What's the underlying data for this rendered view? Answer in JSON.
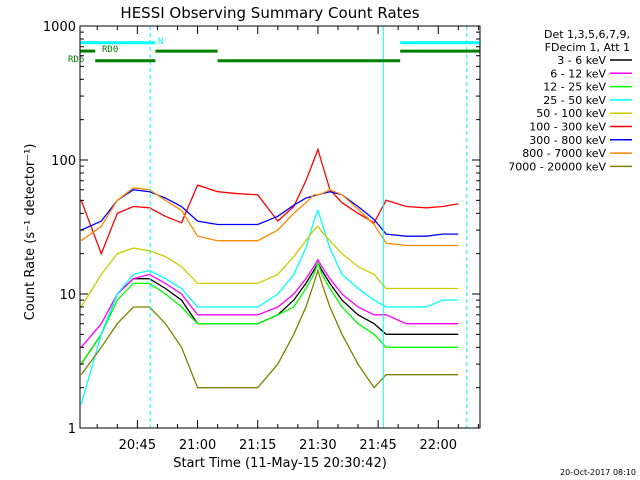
{
  "chart_data": {
    "type": "line",
    "title": "HESSI Observing Summary Count Rates",
    "xlabel": "Start Time (11-May-15 20:30:42)",
    "ylabel": "Count Rate (s⁻¹ detector⁻¹)",
    "y_scale": "log",
    "ylim": [
      1,
      1000
    ],
    "xlim_minutes_from_2030": [
      0.7,
      100.4
    ],
    "x_ticks": [
      "20:45",
      "21:00",
      "21:15",
      "21:30",
      "21:45",
      "22:00"
    ],
    "y_ticks": [
      "1",
      "10",
      "100",
      "1000"
    ],
    "grid": false,
    "legend_position": "top-right",
    "legend_header": [
      "Det 1,3,5,6,7,9,",
      "FDecim 1, Att 1"
    ],
    "timestamp": "20-Oct-2017 08:10",
    "x_times": [
      "20:31",
      "20:36",
      "20:40",
      "20:44",
      "20:48",
      "20:52",
      "20:56",
      "21:00",
      "21:05",
      "21:10",
      "21:15",
      "21:20",
      "21:24",
      "21:27",
      "21:29",
      "21:30",
      "21:31",
      "21:33",
      "21:36",
      "21:40",
      "21:44",
      "21:47",
      "21:52",
      "21:57",
      "22:01",
      "22:05"
    ],
    "series": [
      {
        "name": "3 - 6 keV",
        "color": "#000000",
        "values": [
          3,
          5,
          10,
          13,
          13,
          11,
          9,
          6,
          6,
          6,
          6,
          7,
          9,
          12,
          15,
          17,
          15,
          12,
          9,
          7,
          6,
          5,
          5,
          5,
          5,
          5
        ]
      },
      {
        "name": "6 - 12 keV",
        "color": "#ff00ff",
        "values": [
          4,
          6,
          10,
          13,
          14,
          12,
          10,
          7,
          7,
          7,
          7,
          8,
          10,
          13,
          16,
          18,
          16,
          13,
          10,
          8,
          7,
          7,
          6,
          6,
          6,
          6
        ]
      },
      {
        "name": "12 - 25 keV",
        "color": "#00ff00",
        "values": [
          3,
          5,
          9,
          12,
          12,
          10,
          8,
          6,
          6,
          6,
          6,
          7,
          8,
          11,
          14,
          17,
          14,
          11,
          8,
          6,
          5,
          4,
          4,
          4,
          4,
          4
        ]
      },
      {
        "name": "25 - 50 keV",
        "color": "#00ffff",
        "values": [
          1.5,
          5,
          10,
          14,
          15,
          13,
          11,
          8,
          8,
          8,
          8,
          10,
          14,
          22,
          35,
          42,
          34,
          22,
          14,
          11,
          9,
          8,
          8,
          8,
          9,
          9
        ]
      },
      {
        "name": "50 - 100 keV",
        "color": "#cccc00",
        "values": [
          8,
          14,
          20,
          22,
          21,
          19,
          16,
          12,
          12,
          12,
          12,
          14,
          19,
          25,
          30,
          32,
          29,
          25,
          20,
          16,
          14,
          11,
          11,
          11,
          11,
          11
        ]
      },
      {
        "name": "100 - 300 keV",
        "color": "#ff0000",
        "values": [
          50,
          20,
          40,
          45,
          44,
          38,
          34,
          65,
          58,
          56,
          55,
          35,
          45,
          70,
          100,
          120,
          95,
          60,
          48,
          40,
          34,
          50,
          45,
          44,
          45,
          47
        ]
      },
      {
        "name": "300 - 800 keV",
        "color": "#0000ff",
        "values": [
          30,
          35,
          50,
          60,
          58,
          52,
          45,
          35,
          33,
          33,
          33,
          38,
          46,
          52,
          54,
          55,
          56,
          58,
          55,
          45,
          36,
          28,
          27,
          27,
          28,
          28
        ]
      },
      {
        "name": "800 - 7000 keV",
        "color": "#ff8800",
        "values": [
          25,
          32,
          50,
          62,
          60,
          50,
          42,
          27,
          25,
          25,
          25,
          30,
          40,
          48,
          55,
          55,
          56,
          60,
          55,
          43,
          33,
          24,
          23,
          23,
          23,
          23
        ]
      },
      {
        "name": "7000 - 20000 keV",
        "color": "#808000",
        "values": [
          2.5,
          4,
          6,
          8,
          8,
          6,
          4,
          2,
          2,
          2,
          2,
          3,
          5,
          8,
          12,
          15,
          12,
          8,
          5,
          3,
          2,
          2.5,
          2.5,
          2.5,
          2.5,
          2.5
        ]
      }
    ],
    "annotations": [
      {
        "label": "N",
        "color": "#00ffff",
        "bands": [
          [
            0.7,
            19.5
          ],
          [
            80.5,
            100.4
          ]
        ],
        "level": 750
      },
      {
        "label": "RD0",
        "color": "#008000",
        "bands": [
          [
            0.7,
            4.5
          ],
          [
            19.5,
            35.0
          ],
          [
            80.5,
            100.4
          ]
        ],
        "level": 650
      },
      {
        "label": "RD6",
        "color": "#008000",
        "bands": [
          [
            4.5,
            19.5
          ],
          [
            35.0,
            80.5
          ]
        ],
        "level": 550
      }
    ],
    "vertical_markers": [
      {
        "style": "solid",
        "color": "#00ffff",
        "minute": 0.7
      },
      {
        "style": "dashed",
        "color": "#00ffff",
        "minute": 18.2
      },
      {
        "style": "solid",
        "color": "#00ffff",
        "minute": 76.3
      },
      {
        "style": "dashed",
        "color": "#00ffff",
        "minute": 97.1
      }
    ]
  }
}
